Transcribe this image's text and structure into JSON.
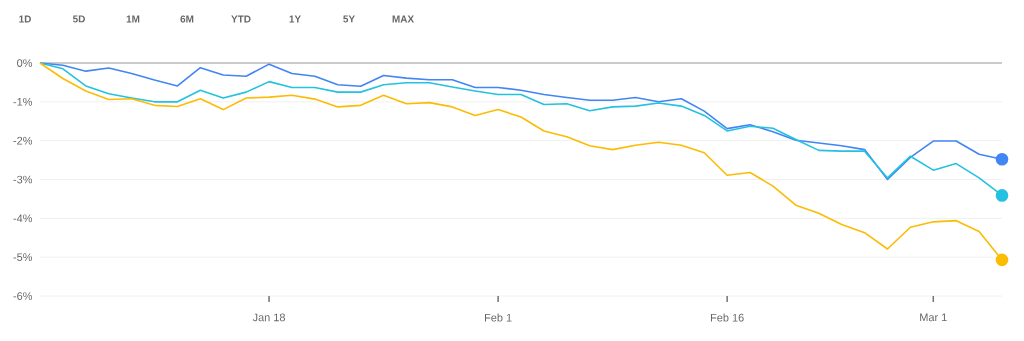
{
  "chart_data": {
    "type": "line",
    "categories": [
      null,
      null,
      null,
      null,
      null,
      null,
      null,
      null,
      null,
      null,
      "Jan 18",
      null,
      null,
      null,
      null,
      null,
      null,
      null,
      null,
      null,
      "Feb 1",
      null,
      null,
      null,
      null,
      null,
      null,
      null,
      null,
      null,
      "Feb 16",
      null,
      null,
      null,
      null,
      null,
      null,
      null,
      null,
      "Mar 1",
      null,
      null,
      null
    ],
    "series": [
      {
        "color": "#4285f4",
        "values": [
          0,
          -0.06,
          -0.21,
          -0.13,
          -0.27,
          -0.44,
          -0.59,
          -0.12,
          -0.31,
          -0.34,
          -0.03,
          -0.27,
          -0.34,
          -0.56,
          -0.6,
          -0.32,
          -0.39,
          -0.43,
          -0.43,
          -0.63,
          -0.63,
          -0.7,
          -0.81,
          -0.89,
          -0.96,
          -0.96,
          -0.89,
          -1.0,
          -0.92,
          -1.24,
          -1.69,
          -1.59,
          -1.77,
          -1.99,
          -2.06,
          -2.13,
          -2.23,
          -3.0,
          -2.43,
          -2.01,
          -2.01,
          -2.35,
          -2.48
        ]
      },
      {
        "color": "#24c1e0",
        "values": [
          0,
          -0.15,
          -0.59,
          -0.79,
          -0.9,
          -1.0,
          -1.0,
          -0.7,
          -0.9,
          -0.75,
          -0.48,
          -0.63,
          -0.63,
          -0.75,
          -0.75,
          -0.56,
          -0.51,
          -0.51,
          -0.62,
          -0.72,
          -0.81,
          -0.81,
          -1.07,
          -1.05,
          -1.23,
          -1.13,
          -1.11,
          -1.03,
          -1.11,
          -1.35,
          -1.75,
          -1.63,
          -1.68,
          -1.97,
          -2.25,
          -2.27,
          -2.27,
          -2.96,
          -2.4,
          -2.76,
          -2.59,
          -2.96,
          -3.41
        ]
      },
      {
        "color": "#fbbc04",
        "values": [
          0,
          -0.4,
          -0.72,
          -0.94,
          -0.92,
          -1.09,
          -1.12,
          -0.92,
          -1.2,
          -0.9,
          -0.88,
          -0.83,
          -0.93,
          -1.13,
          -1.09,
          -0.83,
          -1.05,
          -1.02,
          -1.13,
          -1.35,
          -1.2,
          -1.39,
          -1.75,
          -1.9,
          -2.13,
          -2.23,
          -2.12,
          -2.04,
          -2.12,
          -2.31,
          -2.89,
          -2.82,
          -3.17,
          -3.66,
          -3.87,
          -4.16,
          -4.37,
          -4.79,
          -4.23,
          -4.09,
          -4.06,
          -4.34,
          -5.07
        ]
      }
    ],
    "ylim": [
      -6,
      0
    ],
    "yticks": [
      {
        "value": 0,
        "label": "0%"
      },
      {
        "value": -1,
        "label": "-1%"
      },
      {
        "value": -2,
        "label": "-2%"
      },
      {
        "value": -3,
        "label": "-3%"
      },
      {
        "value": -4,
        "label": "-4%"
      },
      {
        "value": -5,
        "label": "-5%"
      },
      {
        "value": -6,
        "label": "-6%"
      }
    ],
    "grid": "y",
    "line_style": "solid",
    "ref_lines": [
      {
        "axis": "y",
        "value": 0,
        "color": "#9e9e9e"
      }
    ],
    "annotations": [
      "1D",
      "5D",
      "1M",
      "6M",
      "YTD",
      "1Y",
      "5Y",
      "MAX"
    ]
  }
}
